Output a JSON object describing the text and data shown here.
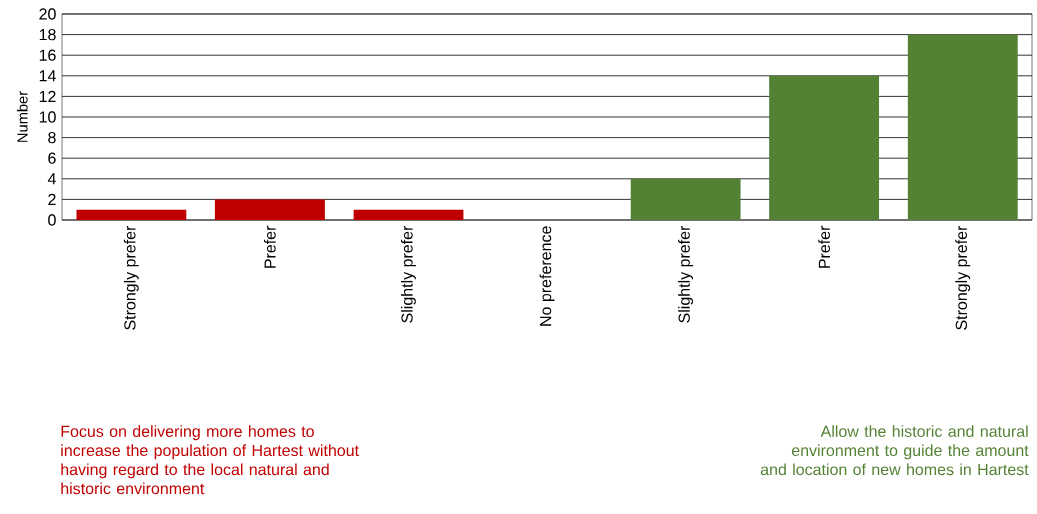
{
  "chart_data": {
    "type": "bar",
    "ylabel": "Number",
    "categories": [
      "Strongly prefer",
      "Prefer",
      "Slightly prefer",
      "No preference",
      "Slightly prefer",
      "Prefer",
      "Strongly prefer"
    ],
    "values": [
      1,
      2,
      1,
      0,
      4,
      14,
      18
    ],
    "colors": [
      "#c00000",
      "#c00000",
      "#c00000",
      "#548235",
      "#548235",
      "#548235",
      "#548235"
    ],
    "ylim": [
      0,
      20
    ],
    "yticks": [
      0,
      2,
      4,
      6,
      8,
      10,
      12,
      14,
      16,
      18,
      20
    ],
    "grid": "y",
    "annotations": [
      "Focus on delivering more homes to increase the population of Hartest without having regard to the local natural and historic environment",
      "Allow the historic and natural environment to guide the amount and location of new homes in Hartest"
    ]
  }
}
